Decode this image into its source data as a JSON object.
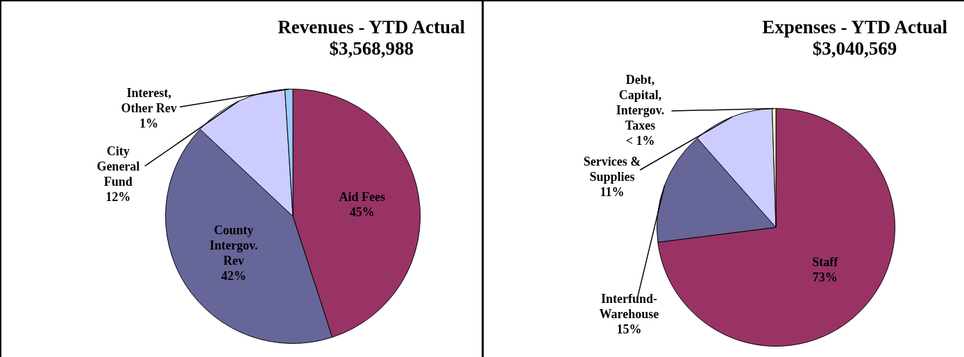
{
  "chart_data": [
    {
      "type": "pie",
      "title": "Revenues - YTD Actual",
      "subtitle": "$3,568,988",
      "categories": [
        "Aid Fees",
        "County Intergov. Rev",
        "City General Fund",
        "Interest, Other Rev"
      ],
      "values": [
        45,
        42,
        12,
        1
      ],
      "colors": [
        "#993366",
        "#666699",
        "#ccccff",
        "#99ccff"
      ],
      "value_labels": [
        "45%",
        "42%",
        "12%",
        "1%"
      ]
    },
    {
      "type": "pie",
      "title": "Expenses - YTD Actual",
      "subtitle": "$3,040,569",
      "categories": [
        "Staff",
        "Interfund-Warehouse",
        "Services & Supplies",
        "Debt, Capital, Intergov. Taxes"
      ],
      "values": [
        73,
        15.5,
        11,
        0.5
      ],
      "colors": [
        "#993366",
        "#666699",
        "#ccccff",
        "#ffffcc"
      ],
      "value_labels": [
        "73%",
        "15%",
        "11%",
        "< 1%"
      ]
    }
  ]
}
